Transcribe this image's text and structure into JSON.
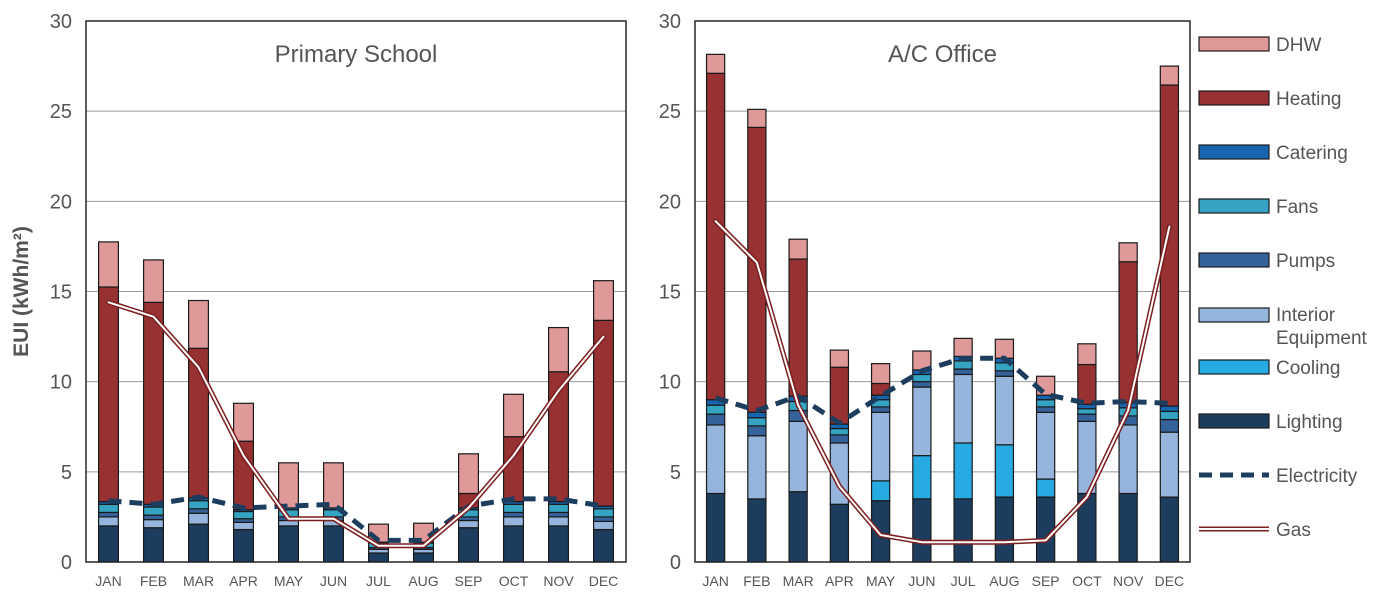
{
  "chart_data": [
    {
      "type": "bar",
      "stacked": true,
      "title": "Primary School",
      "ylabel": "EUI (kWh/m²)",
      "ylim": [
        0,
        30
      ],
      "yticks": [
        "0",
        "5",
        "10",
        "15",
        "20",
        "25",
        "30"
      ],
      "grid": true,
      "categories": [
        "JAN",
        "FEB",
        "MAR",
        "APR",
        "MAY",
        "JUN",
        "JUL",
        "AUG",
        "SEP",
        "OCT",
        "NOV",
        "DEC"
      ],
      "series": [
        {
          "name": "Lighting",
          "values": [
            2.0,
            1.9,
            2.1,
            1.8,
            2.0,
            2.0,
            0.5,
            0.5,
            1.9,
            2.0,
            2.0,
            1.8
          ]
        },
        {
          "name": "Cooling",
          "values": [
            0,
            0,
            0,
            0,
            0,
            0,
            0,
            0,
            0,
            0,
            0,
            0
          ]
        },
        {
          "name": "Interior Equipment",
          "values": [
            0.5,
            0.45,
            0.6,
            0.4,
            0.3,
            0.3,
            0.2,
            0.2,
            0.4,
            0.5,
            0.5,
            0.45
          ]
        },
        {
          "name": "Pumps",
          "values": [
            0.25,
            0.25,
            0.25,
            0.2,
            0.2,
            0.2,
            0.1,
            0.1,
            0.2,
            0.25,
            0.25,
            0.25
          ]
        },
        {
          "name": "Fans",
          "values": [
            0.45,
            0.45,
            0.45,
            0.4,
            0.4,
            0.4,
            0.25,
            0.25,
            0.4,
            0.45,
            0.45,
            0.45
          ]
        },
        {
          "name": "Catering",
          "values": [
            0.15,
            0.15,
            0.15,
            0.1,
            0.1,
            0.1,
            0.05,
            0.05,
            0.1,
            0.15,
            0.15,
            0.15
          ]
        },
        {
          "name": "Heating",
          "values": [
            11.9,
            11.2,
            8.3,
            3.8,
            0,
            0,
            0,
            0,
            0.8,
            3.6,
            7.2,
            10.3
          ]
        },
        {
          "name": "DHW",
          "values": [
            2.5,
            2.35,
            2.65,
            2.1,
            2.5,
            2.5,
            1.0,
            1.05,
            2.2,
            2.35,
            2.45,
            2.2
          ]
        }
      ],
      "lines": [
        {
          "name": "Electricity",
          "values": [
            3.4,
            3.2,
            3.6,
            3.0,
            3.1,
            3.2,
            1.2,
            1.2,
            3.1,
            3.5,
            3.5,
            3.1
          ]
        },
        {
          "name": "Gas",
          "values": [
            14.4,
            13.6,
            10.8,
            5.9,
            2.4,
            2.4,
            0.9,
            0.9,
            3.0,
            5.9,
            9.5,
            12.5
          ]
        }
      ]
    },
    {
      "type": "bar",
      "stacked": true,
      "title": "A/C Office",
      "ylabel": "",
      "ylim": [
        0,
        30
      ],
      "yticks": [
        "0",
        "5",
        "10",
        "15",
        "20",
        "25",
        "30"
      ],
      "grid": true,
      "categories": [
        "JAN",
        "FEB",
        "MAR",
        "APR",
        "MAY",
        "JUN",
        "JUL",
        "AUG",
        "SEP",
        "OCT",
        "NOV",
        "DEC"
      ],
      "series": [
        {
          "name": "Lighting",
          "values": [
            3.8,
            3.5,
            3.9,
            3.2,
            3.4,
            3.5,
            3.5,
            3.6,
            3.6,
            3.8,
            3.8,
            3.6
          ]
        },
        {
          "name": "Cooling",
          "values": [
            0,
            0,
            0,
            0,
            1.1,
            2.4,
            3.1,
            2.9,
            1.0,
            0,
            0,
            0
          ]
        },
        {
          "name": "Interior Equipment",
          "values": [
            3.8,
            3.5,
            3.9,
            3.4,
            3.8,
            3.8,
            3.8,
            3.8,
            3.7,
            4.0,
            3.8,
            3.6
          ]
        },
        {
          "name": "Pumps",
          "values": [
            0.6,
            0.55,
            0.6,
            0.45,
            0.3,
            0.3,
            0.3,
            0.3,
            0.3,
            0.4,
            0.5,
            0.7
          ]
        },
        {
          "name": "Fans",
          "values": [
            0.5,
            0.45,
            0.5,
            0.35,
            0.4,
            0.4,
            0.45,
            0.45,
            0.4,
            0.3,
            0.45,
            0.45
          ]
        },
        {
          "name": "Catering",
          "values": [
            0.3,
            0.3,
            0.3,
            0.25,
            0.25,
            0.25,
            0.25,
            0.25,
            0.25,
            0.25,
            0.3,
            0.3
          ]
        },
        {
          "name": "Heating",
          "values": [
            18.1,
            15.8,
            7.6,
            3.15,
            0.65,
            0,
            0,
            0,
            0,
            2.2,
            7.8,
            17.8
          ]
        },
        {
          "name": "DHW",
          "values": [
            1.05,
            1.0,
            1.1,
            0.95,
            1.1,
            1.05,
            1.0,
            1.05,
            1.05,
            1.15,
            1.05,
            1.05
          ]
        }
      ],
      "lines": [
        {
          "name": "Electricity",
          "values": [
            9.1,
            8.4,
            9.2,
            7.7,
            9.2,
            10.6,
            11.3,
            11.3,
            9.3,
            8.8,
            8.9,
            8.8
          ]
        },
        {
          "name": "Gas",
          "values": [
            18.9,
            16.6,
            8.7,
            4.2,
            1.5,
            1.1,
            1.1,
            1.1,
            1.2,
            3.6,
            8.4,
            18.6
          ]
        }
      ]
    }
  ],
  "legend": {
    "position": "right",
    "items": [
      {
        "label": "DHW",
        "kind": "bar",
        "color": "#e09999"
      },
      {
        "label": "Heating",
        "kind": "bar",
        "color": "#983232"
      },
      {
        "label": "Catering",
        "kind": "bar",
        "color": "#1665b0"
      },
      {
        "label": "Fans",
        "kind": "bar",
        "color": "#35a4c3"
      },
      {
        "label": "Pumps",
        "kind": "bar",
        "color": "#35629a"
      },
      {
        "label": "Interior Equipment",
        "kind": "bar",
        "color": "#96b5dd"
      },
      {
        "label": "Cooling",
        "kind": "bar",
        "color": "#26aae2"
      },
      {
        "label": "Lighting",
        "kind": "bar",
        "color": "#1d3d5f"
      },
      {
        "label": "Electricity",
        "kind": "dashed-line",
        "color": "#1d3d5f"
      },
      {
        "label": "Gas",
        "kind": "double-line",
        "color": "#7b1f1f"
      }
    ]
  }
}
